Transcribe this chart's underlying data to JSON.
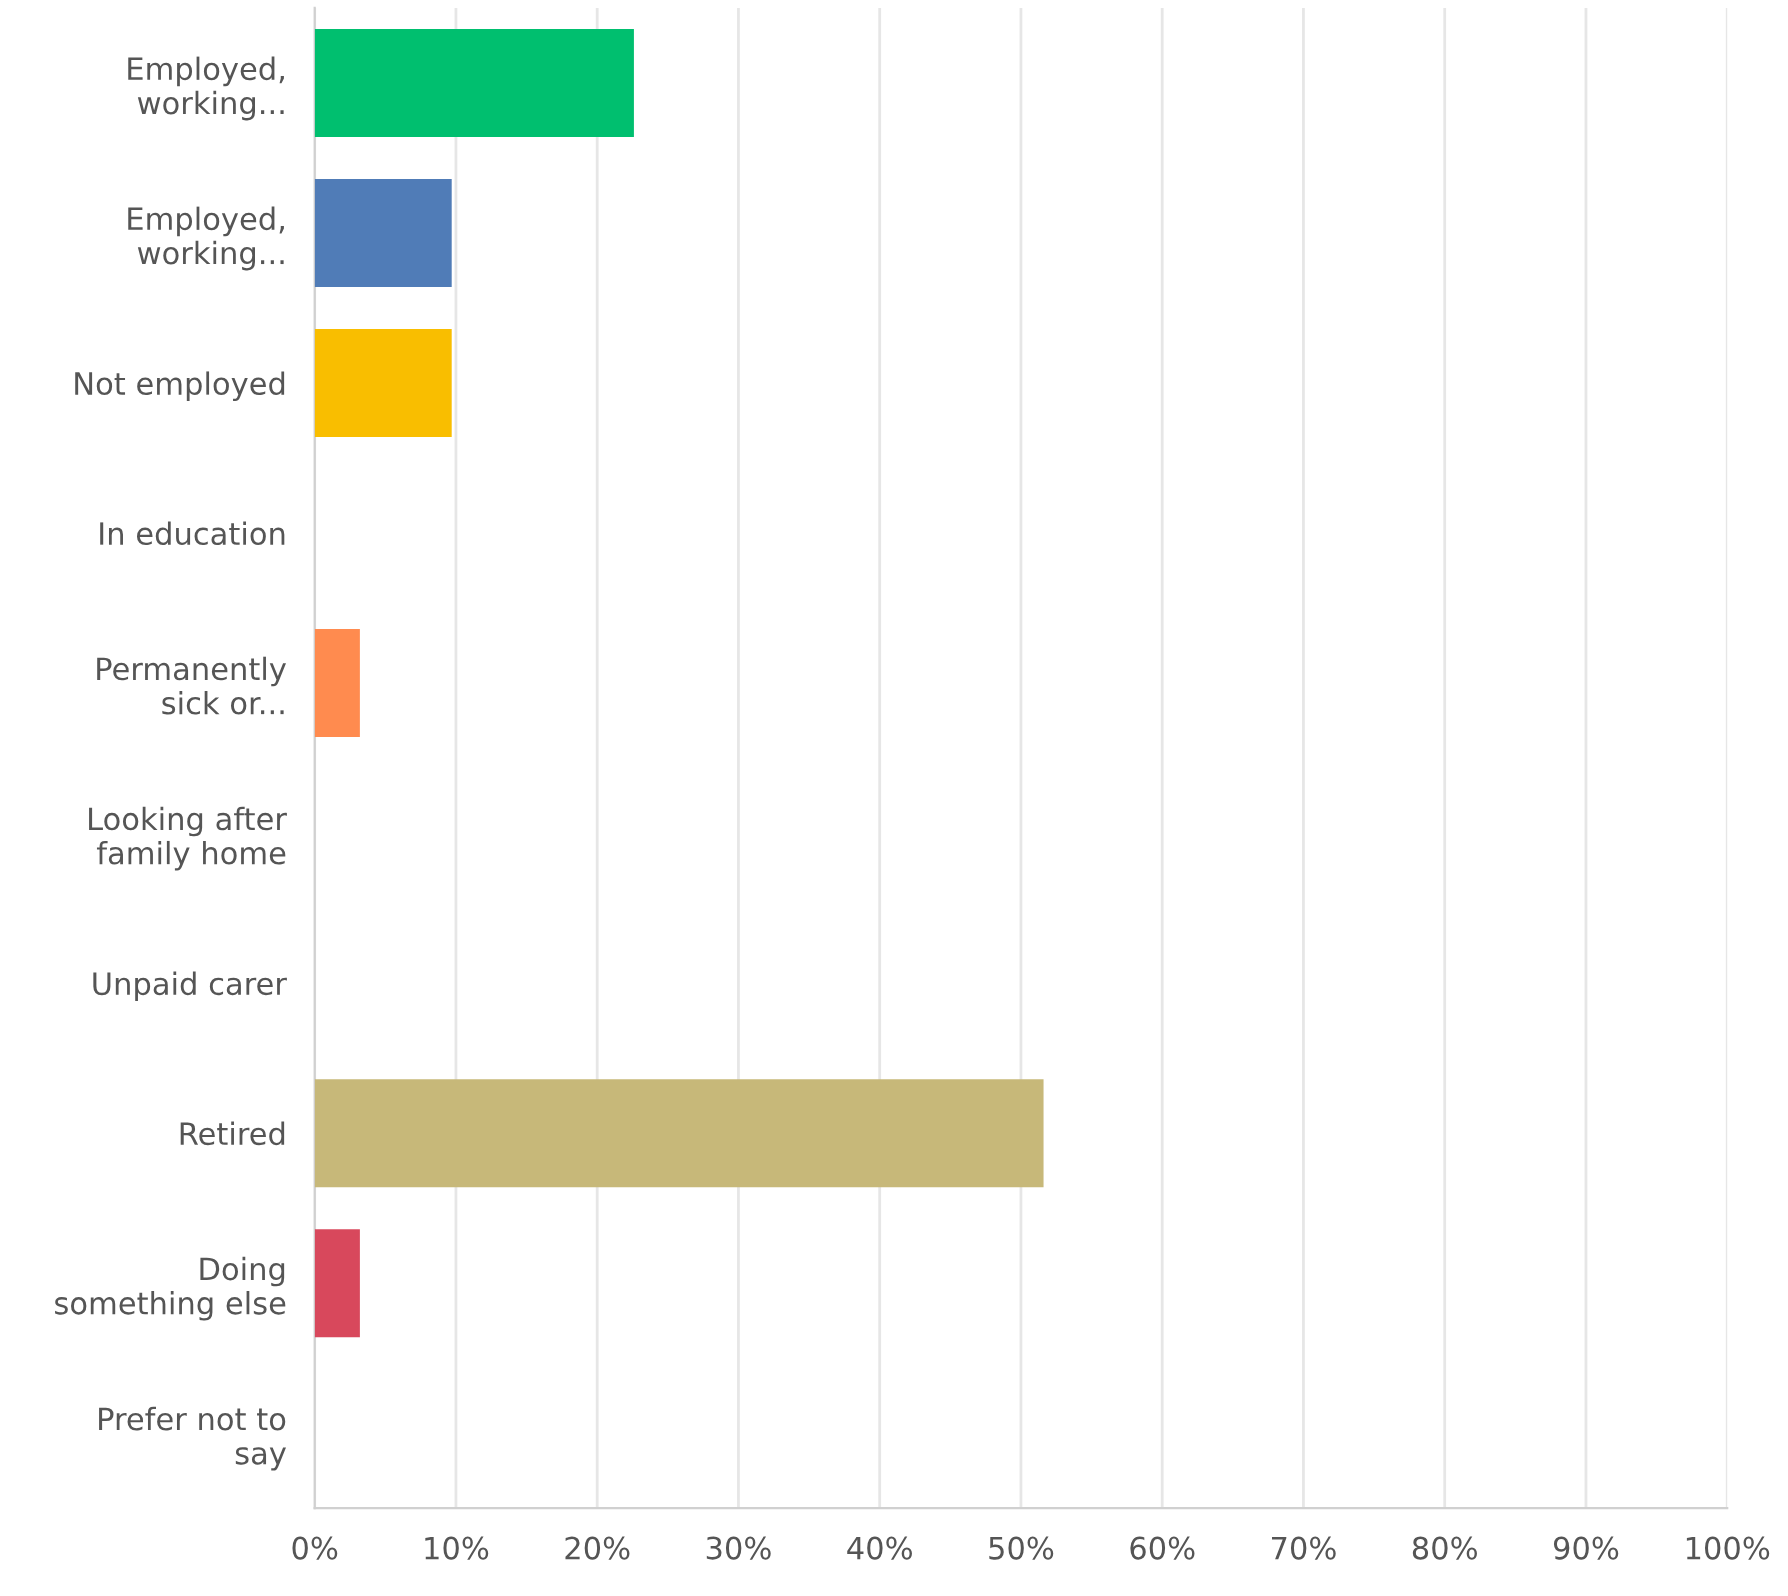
{
  "chart_data": {
    "type": "bar",
    "orientation": "horizontal",
    "categories": [
      "Employed,\nworking...",
      "Employed,\nworking...",
      "Not employed",
      "In education",
      "Permanently\nsick or...",
      "Looking after\nfamily home",
      "Unpaid carer",
      "Retired",
      "Doing\nsomething else",
      "Prefer not to\nsay"
    ],
    "values": [
      22.6,
      9.7,
      9.7,
      0,
      3.2,
      0,
      0,
      51.6,
      3.2,
      0
    ],
    "colors": [
      "#00bf6f",
      "#507cb7",
      "#f9be00",
      "#6bc8cd",
      "#ff8b4f",
      "#7d6db6",
      "#d25f90",
      "#c7b879",
      "#d8485c",
      "#6dafe0"
    ],
    "xlim": [
      0,
      100
    ],
    "xticks": [
      {
        "value": 0,
        "label": "0%"
      },
      {
        "value": 10,
        "label": "10%"
      },
      {
        "value": 20,
        "label": "20%"
      },
      {
        "value": 30,
        "label": "30%"
      },
      {
        "value": 40,
        "label": "40%"
      },
      {
        "value": 50,
        "label": "50%"
      },
      {
        "value": 60,
        "label": "60%"
      },
      {
        "value": 70,
        "label": "70%"
      },
      {
        "value": 80,
        "label": "80%"
      },
      {
        "value": 90,
        "label": "90%"
      },
      {
        "value": 100,
        "label": "100%"
      }
    ],
    "grid": "x"
  }
}
